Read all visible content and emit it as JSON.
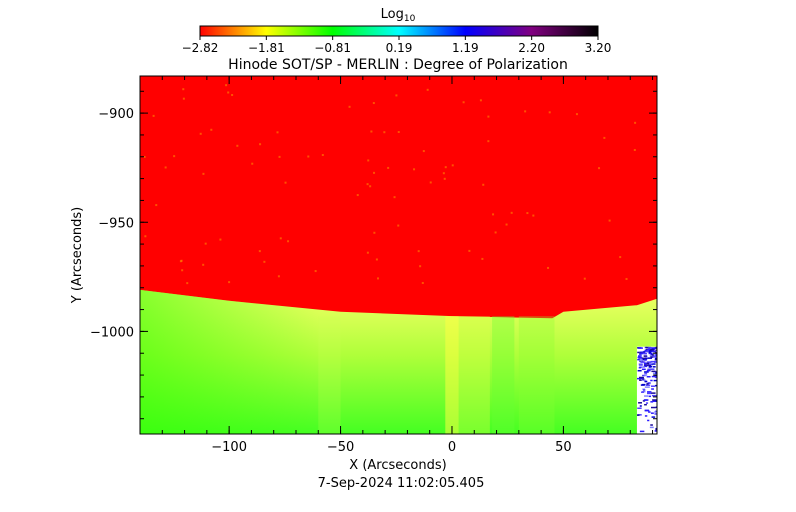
{
  "colorbar": {
    "label_main": "Log",
    "label_sub": "10",
    "ticks": [
      "-2.82",
      "-1.81",
      "-0.81",
      "0.19",
      "1.19",
      "2.20",
      "3.20"
    ],
    "range": [
      -2.82,
      3.2
    ],
    "colormap": [
      "#ff0000",
      "#ffff00",
      "#00ff00",
      "#00ffff",
      "#0000ff",
      "#800080",
      "#000000"
    ]
  },
  "chart_data": {
    "type": "heatmap",
    "title": "Hinode SOT/SP - MERLIN : Degree of Polarization",
    "xlabel": "X (Arcseconds)",
    "ylabel": "Y (Arcseconds)",
    "footer": "7-Sep-2024 11:02:05.405",
    "xlim": [
      -140,
      92
    ],
    "ylim": [
      -1047,
      -883
    ],
    "x_ticks": [
      -100,
      -50,
      0,
      50
    ],
    "y_ticks": [
      -900,
      -950,
      -1000
    ],
    "limb_y": [
      [
        -140,
        -981
      ],
      [
        -100,
        -986
      ],
      [
        -50,
        -991
      ],
      [
        0,
        -993
      ],
      [
        45,
        -994
      ],
      [
        50,
        -991
      ],
      [
        83,
        -988
      ],
      [
        92,
        -985
      ]
    ],
    "regions": [
      {
        "name": "off-limb",
        "log10_value": -2.82,
        "color": "#ff0000"
      },
      {
        "name": "disk",
        "log10_value": -1.3,
        "color": "#aaff55"
      }
    ]
  }
}
